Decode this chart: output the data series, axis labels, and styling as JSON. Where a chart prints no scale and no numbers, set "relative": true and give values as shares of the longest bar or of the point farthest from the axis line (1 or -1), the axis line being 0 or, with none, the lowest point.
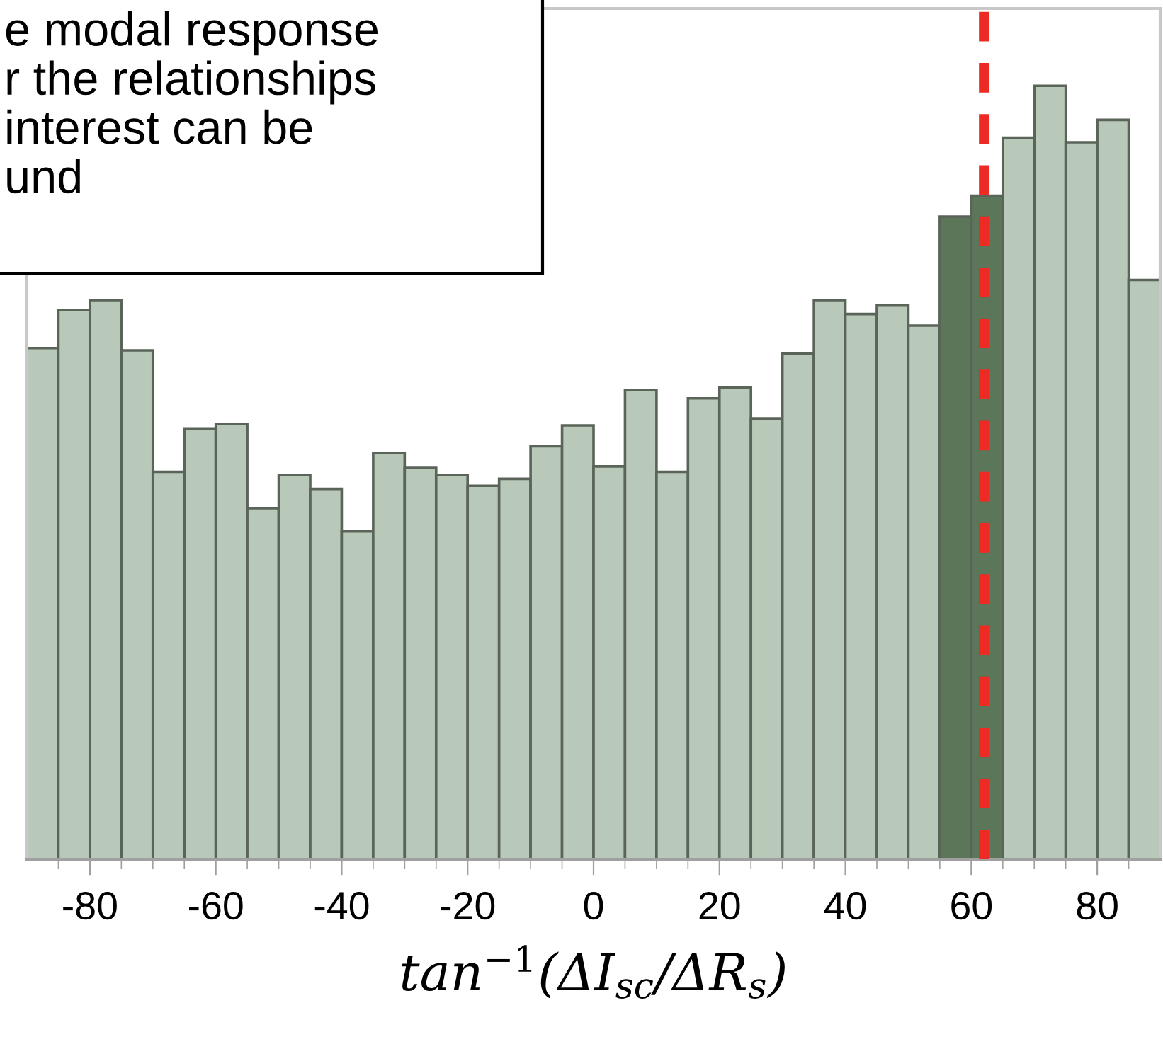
{
  "chart_data": {
    "type": "bar",
    "relative": true,
    "x": [
      -87.5,
      -82.5,
      -77.5,
      -72.5,
      -67.5,
      -62.5,
      -57.5,
      -52.5,
      -47.5,
      -42.5,
      -37.5,
      -32.5,
      -27.5,
      -22.5,
      -17.5,
      -12.5,
      -7.5,
      -2.5,
      2.5,
      7.5,
      12.5,
      17.5,
      22.5,
      27.5,
      32.5,
      37.5,
      42.5,
      47.5,
      52.5,
      57.5,
      62.5,
      67.5,
      72.5,
      77.5,
      82.5,
      87.5
    ],
    "values": [
      0.661,
      0.71,
      0.723,
      0.658,
      0.501,
      0.557,
      0.563,
      0.454,
      0.497,
      0.479,
      0.424,
      0.525,
      0.506,
      0.497,
      0.483,
      0.492,
      0.534,
      0.561,
      0.508,
      0.607,
      0.501,
      0.596,
      0.61,
      0.57,
      0.654,
      0.723,
      0.705,
      0.716,
      0.69,
      0.831,
      0.858,
      0.933,
      1,
      0.927,
      0.956,
      0.749
    ],
    "colors": [
      "#b9c9b9",
      "#b9c9b9",
      "#b9c9b9",
      "#b9c9b9",
      "#b9c9b9",
      "#b9c9b9",
      "#b9c9b9",
      "#b9c9b9",
      "#b9c9b9",
      "#b9c9b9",
      "#b9c9b9",
      "#b9c9b9",
      "#b9c9b9",
      "#b9c9b9",
      "#b9c9b9",
      "#b9c9b9",
      "#b9c9b9",
      "#b9c9b9",
      "#b9c9b9",
      "#b9c9b9",
      "#b9c9b9",
      "#b9c9b9",
      "#b9c9b9",
      "#b9c9b9",
      "#b9c9b9",
      "#b9c9b9",
      "#b9c9b9",
      "#b9c9b9",
      "#b9c9b9",
      "#5b7659",
      "#5b7659",
      "#b9c9b9",
      "#b9c9b9",
      "#b9c9b9",
      "#b9c9b9",
      "#b9c9b9"
    ],
    "xlim": [
      -90,
      90
    ],
    "xticks": [
      {
        "value": -85,
        "label": null
      },
      {
        "value": -80,
        "label": "-80"
      },
      {
        "value": -75,
        "label": null
      },
      {
        "value": -70,
        "label": null
      },
      {
        "value": -65,
        "label": null
      },
      {
        "value": -60,
        "label": "-60"
      },
      {
        "value": -55,
        "label": null
      },
      {
        "value": -50,
        "label": null
      },
      {
        "value": -45,
        "label": null
      },
      {
        "value": -40,
        "label": "-40"
      },
      {
        "value": -35,
        "label": null
      },
      {
        "value": -30,
        "label": null
      },
      {
        "value": -25,
        "label": null
      },
      {
        "value": -20,
        "label": "-20"
      },
      {
        "value": -15,
        "label": null
      },
      {
        "value": -10,
        "label": null
      },
      {
        "value": -5,
        "label": null
      },
      {
        "value": 0,
        "label": "0"
      },
      {
        "value": 5,
        "label": null
      },
      {
        "value": 10,
        "label": null
      },
      {
        "value": 15,
        "label": null
      },
      {
        "value": 20,
        "label": "20"
      },
      {
        "value": 25,
        "label": null
      },
      {
        "value": 30,
        "label": null
      },
      {
        "value": 35,
        "label": null
      },
      {
        "value": 40,
        "label": "40"
      },
      {
        "value": 45,
        "label": null
      },
      {
        "value": 50,
        "label": null
      },
      {
        "value": 55,
        "label": null
      },
      {
        "value": 60,
        "label": "60"
      },
      {
        "value": 65,
        "label": null
      },
      {
        "value": 70,
        "label": null
      },
      {
        "value": 75,
        "label": null
      },
      {
        "value": 80,
        "label": "80"
      },
      {
        "value": 85,
        "label": null
      }
    ],
    "xlabel": "tan$^{−1}$(ΔI$_{sc}$/ΔR$_{s}$)",
    "ref_lines": [
      {
        "axis": "x",
        "value": 62,
        "color": "#ee2a24",
        "line_style": "dashed"
      }
    ],
    "annotations": [
      "e modal response\nr the relationships\ninterest can be\nund"
    ],
    "grid": false
  }
}
